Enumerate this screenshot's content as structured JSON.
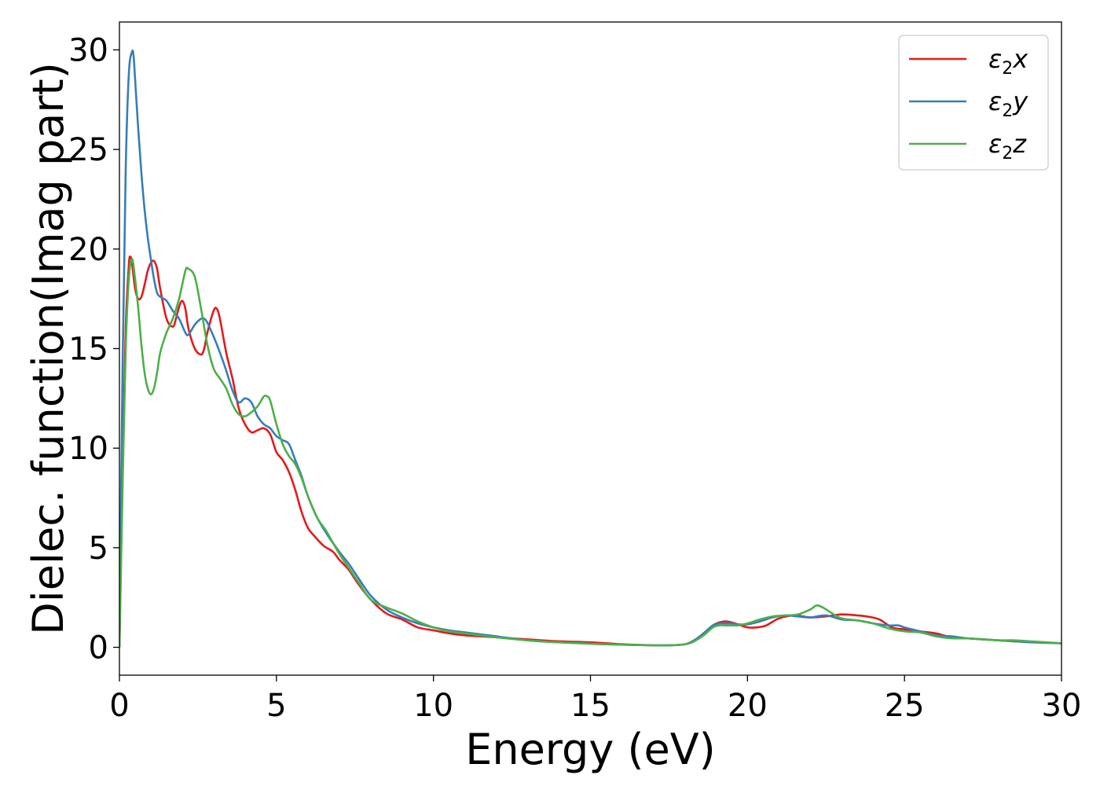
{
  "chart_data": {
    "type": "line",
    "xlabel": "Energy (eV)",
    "ylabel": "Dielec. function(Imag part)",
    "xlim": [
      0,
      30
    ],
    "ylim": [
      -1.4,
      31.4
    ],
    "xticks": [
      "0",
      "5",
      "10",
      "15",
      "20",
      "25",
      "30"
    ],
    "yticks": [
      "0",
      "5",
      "10",
      "15",
      "20",
      "25",
      "30"
    ],
    "grid": false,
    "legend_position": "top-right",
    "series": [
      {
        "name": "ε₂x",
        "legend_base": "ε",
        "legend_sub": "2",
        "legend_var": "x",
        "color": "#e41a1c",
        "x": [
          0,
          0.1,
          0.2,
          0.3,
          0.35,
          0.4,
          0.5,
          0.6,
          0.7,
          0.8,
          0.9,
          1.0,
          1.1,
          1.2,
          1.3,
          1.5,
          1.7,
          1.8,
          1.9,
          2.0,
          2.1,
          2.2,
          2.4,
          2.6,
          2.7,
          2.8,
          3.0,
          3.1,
          3.2,
          3.4,
          3.6,
          3.8,
          4.0,
          4.2,
          4.4,
          4.6,
          4.8,
          5.0,
          5.2,
          5.4,
          5.6,
          5.8,
          6.0,
          6.2,
          6.5,
          6.8,
          7.0,
          7.3,
          7.6,
          8.0,
          8.5,
          9.0,
          9.5,
          10.0,
          10.5,
          11.0,
          11.5,
          12.0,
          12.5,
          13.0,
          14.0,
          15.0,
          16.0,
          17.0,
          17.5,
          18.0,
          18.3,
          18.6,
          18.9,
          19.1,
          19.3,
          19.5,
          19.7,
          20.0,
          20.3,
          20.6,
          21.0,
          21.5,
          22.0,
          22.5,
          23.0,
          23.5,
          23.8,
          24.2,
          24.6,
          25.0,
          25.5,
          26.0,
          26.5,
          27.0,
          27.5,
          28.0,
          28.5,
          29.0,
          30.0
        ],
        "y": [
          0,
          9,
          16,
          19.2,
          19.6,
          19.3,
          18.0,
          17.5,
          17.6,
          18.2,
          18.9,
          19.3,
          19.4,
          19.0,
          18.0,
          16.5,
          16.1,
          16.5,
          17.1,
          17.4,
          17.0,
          16.0,
          15.0,
          14.7,
          15.0,
          15.8,
          16.9,
          17.0,
          16.5,
          14.8,
          13.5,
          12.0,
          11.2,
          10.8,
          10.9,
          11.0,
          10.7,
          9.8,
          9.4,
          8.8,
          7.9,
          6.8,
          6.0,
          5.6,
          5.1,
          4.8,
          4.4,
          3.9,
          3.2,
          2.4,
          1.7,
          1.4,
          1.0,
          0.85,
          0.7,
          0.6,
          0.55,
          0.5,
          0.45,
          0.4,
          0.3,
          0.25,
          0.15,
          0.1,
          0.1,
          0.15,
          0.3,
          0.7,
          1.1,
          1.25,
          1.3,
          1.25,
          1.15,
          1.0,
          1.0,
          1.1,
          1.45,
          1.6,
          1.5,
          1.55,
          1.65,
          1.6,
          1.55,
          1.4,
          1.0,
          0.9,
          0.8,
          0.7,
          0.5,
          0.45,
          0.4,
          0.35,
          0.3,
          0.27,
          0.2
        ]
      },
      {
        "name": "ε₂y",
        "legend_base": "ε",
        "legend_sub": "2",
        "legend_var": "y",
        "color": "#377eb8",
        "x": [
          0,
          0.1,
          0.2,
          0.3,
          0.4,
          0.45,
          0.5,
          0.6,
          0.7,
          0.8,
          0.9,
          1.0,
          1.1,
          1.2,
          1.3,
          1.5,
          1.7,
          1.9,
          2.1,
          2.2,
          2.4,
          2.6,
          2.7,
          2.8,
          3.0,
          3.2,
          3.4,
          3.6,
          3.8,
          4.0,
          4.2,
          4.4,
          4.6,
          4.8,
          5.0,
          5.2,
          5.4,
          5.6,
          5.8,
          6.0,
          6.3,
          6.6,
          7.0,
          7.3,
          7.6,
          8.0,
          8.5,
          9.0,
          9.5,
          10.0,
          10.5,
          11.0,
          11.5,
          12.0,
          13.0,
          14.0,
          15.0,
          16.0,
          17.0,
          17.5,
          18.0,
          18.3,
          18.6,
          18.9,
          19.1,
          19.3,
          19.5,
          19.7,
          20.0,
          20.4,
          20.8,
          21.2,
          21.6,
          22.0,
          22.5,
          23.0,
          23.5,
          24.0,
          24.5,
          24.8,
          25.0,
          25.5,
          26.0,
          26.5,
          27.0,
          27.5,
          28.0,
          28.5,
          29.0,
          30.0
        ],
        "y": [
          0,
          14,
          24,
          28.8,
          29.9,
          29.7,
          28.5,
          26.0,
          23.8,
          22.0,
          20.6,
          19.5,
          18.5,
          17.8,
          17.6,
          17.4,
          16.9,
          16.5,
          15.8,
          15.7,
          16.2,
          16.5,
          16.5,
          16.3,
          15.6,
          14.8,
          13.9,
          12.9,
          12.3,
          12.5,
          12.3,
          11.6,
          11.2,
          11.0,
          10.6,
          10.4,
          10.2,
          9.4,
          8.6,
          7.6,
          6.5,
          5.7,
          4.8,
          4.2,
          3.5,
          2.6,
          1.9,
          1.5,
          1.2,
          1.0,
          0.85,
          0.75,
          0.65,
          0.55,
          0.35,
          0.25,
          0.18,
          0.13,
          0.1,
          0.1,
          0.15,
          0.35,
          0.7,
          1.1,
          1.2,
          1.2,
          1.2,
          1.15,
          1.15,
          1.3,
          1.5,
          1.6,
          1.55,
          1.5,
          1.6,
          1.4,
          1.35,
          1.2,
          1.1,
          1.1,
          1.0,
          0.8,
          0.6,
          0.55,
          0.45,
          0.4,
          0.35,
          0.3,
          0.25,
          0.2
        ]
      },
      {
        "name": "ε₂z",
        "legend_base": "ε",
        "legend_sub": "2",
        "legend_var": "z",
        "color": "#4daf4a",
        "x": [
          0,
          0.1,
          0.2,
          0.3,
          0.4,
          0.5,
          0.6,
          0.7,
          0.8,
          0.9,
          1.0,
          1.1,
          1.2,
          1.3,
          1.5,
          1.7,
          1.9,
          2.1,
          2.2,
          2.4,
          2.6,
          2.8,
          3.0,
          3.2,
          3.4,
          3.6,
          3.8,
          4.0,
          4.2,
          4.4,
          4.6,
          4.7,
          4.8,
          5.0,
          5.2,
          5.4,
          5.6,
          5.8,
          6.0,
          6.3,
          6.6,
          7.0,
          7.3,
          7.6,
          8.0,
          8.5,
          9.0,
          9.5,
          10.0,
          10.5,
          11.0,
          11.5,
          12.0,
          13.0,
          14.0,
          15.0,
          16.0,
          17.0,
          17.5,
          18.0,
          18.3,
          18.6,
          18.9,
          19.1,
          19.3,
          19.5,
          19.7,
          20.0,
          20.4,
          20.8,
          21.2,
          21.6,
          22.0,
          22.2,
          22.4,
          22.7,
          23.0,
          23.5,
          24.0,
          24.5,
          25.0,
          25.5,
          26.0,
          26.5,
          27.0,
          27.5,
          28.0,
          28.5,
          29.0,
          30.0
        ],
        "y": [
          0,
          8,
          15,
          18.5,
          19.5,
          18.5,
          17.0,
          15.2,
          13.8,
          13.0,
          12.7,
          13.0,
          13.8,
          14.8,
          15.8,
          16.5,
          17.5,
          18.9,
          19.0,
          18.6,
          17.0,
          15.2,
          14.0,
          13.5,
          13.0,
          12.2,
          11.7,
          11.6,
          11.8,
          12.1,
          12.6,
          12.6,
          12.4,
          11.2,
          10.2,
          9.6,
          9.2,
          8.5,
          7.6,
          6.5,
          5.8,
          4.7,
          4.0,
          3.3,
          2.4,
          2.0,
          1.7,
          1.3,
          1.0,
          0.8,
          0.7,
          0.6,
          0.5,
          0.35,
          0.25,
          0.18,
          0.13,
          0.1,
          0.1,
          0.15,
          0.3,
          0.6,
          1.0,
          1.1,
          1.1,
          1.1,
          1.1,
          1.2,
          1.4,
          1.55,
          1.6,
          1.65,
          1.9,
          2.1,
          2.0,
          1.7,
          1.45,
          1.35,
          1.2,
          0.95,
          0.8,
          0.75,
          0.55,
          0.45,
          0.45,
          0.4,
          0.35,
          0.35,
          0.3,
          0.2
        ]
      }
    ]
  }
}
